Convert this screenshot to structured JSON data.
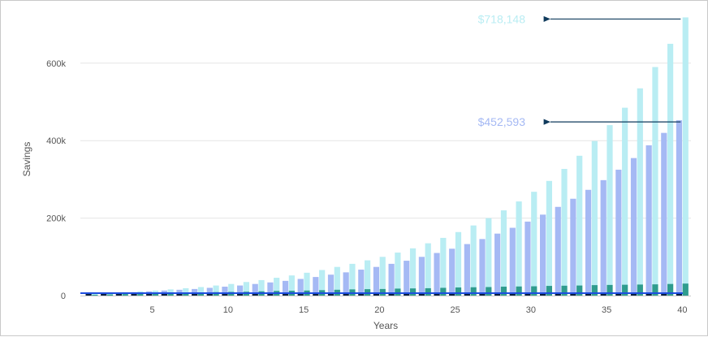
{
  "chart_data": {
    "type": "bar",
    "xlabel": "Years",
    "ylabel": "Savings",
    "x": [
      1,
      2,
      3,
      4,
      5,
      6,
      7,
      8,
      9,
      10,
      11,
      12,
      13,
      14,
      15,
      16,
      17,
      18,
      19,
      20,
      21,
      22,
      23,
      24,
      25,
      26,
      27,
      28,
      29,
      30,
      31,
      32,
      33,
      34,
      35,
      36,
      37,
      38,
      39,
      40
    ],
    "x_ticks": [
      5,
      10,
      15,
      20,
      25,
      30,
      35,
      40
    ],
    "y_ticks": [
      0,
      200000,
      400000,
      600000
    ],
    "y_tick_labels": [
      "0",
      "200k",
      "400k",
      "600k"
    ],
    "ylim": [
      0,
      740000
    ],
    "grid": true,
    "legend": "none",
    "series": [
      {
        "color": "#b9edf3",
        "values": [
          5000,
          7000,
          9000,
          11000,
          13000,
          16000,
          19000,
          22000,
          26000,
          30000,
          35000,
          40000,
          46000,
          52000,
          59000,
          66000,
          74000,
          82000,
          91000,
          100000,
          111000,
          122000,
          135000,
          149000,
          164000,
          181000,
          200000,
          220000,
          243000,
          268000,
          296000,
          327000,
          361000,
          399000,
          440000,
          485000,
          535000,
          590000,
          650000,
          718148
        ]
      },
      {
        "color": "#a5b9f4",
        "values": [
          4500,
          6000,
          7500,
          9000,
          11000,
          13000,
          15000,
          17000,
          20000,
          23000,
          26000,
          30000,
          34000,
          38000,
          43000,
          48000,
          54000,
          60000,
          67000,
          74000,
          82000,
          90000,
          100000,
          110000,
          121000,
          133000,
          146000,
          160000,
          175000,
          191000,
          209000,
          229000,
          250000,
          273000,
          298000,
          325000,
          355000,
          388000,
          420000,
          452593
        ]
      },
      {
        "color": "#2f9c8e",
        "values": [
          2000,
          3000,
          4000,
          5000,
          5500,
          6000,
          7000,
          8000,
          9000,
          9500,
          10000,
          11000,
          12000,
          12500,
          13000,
          14000,
          15000,
          16000,
          16500,
          17000,
          18000,
          18500,
          19000,
          20000,
          21000,
          21500,
          22000,
          23000,
          23500,
          24000,
          25000,
          25500,
          26000,
          27000,
          27500,
          28000,
          28500,
          29000,
          30000,
          31000
        ]
      },
      {
        "color": "#0a1f3f",
        "values": [
          1000,
          1000,
          1000,
          1000,
          1000,
          1000,
          1000,
          1000,
          1000,
          1000,
          1000,
          1000,
          1000,
          1000,
          1000,
          1000,
          1000,
          1000,
          1000,
          1000,
          1000,
          1000,
          1000,
          1000,
          1000,
          1000,
          1000,
          1000,
          1000,
          1000,
          1000,
          1000,
          1000,
          1000,
          1000,
          1000,
          1000,
          1000,
          1000,
          1000
        ]
      }
    ],
    "annotations": [
      {
        "text": "$718,148",
        "value": 718148,
        "color": "#b9edf3"
      },
      {
        "text": "$452,593",
        "value": 452593,
        "color": "#a5b9f4"
      }
    ],
    "baseline_color": "#1f4fe0",
    "arrow_color": "#0f3a5c",
    "grid_color": "#e6e6e6",
    "axis_color": "#cccccc"
  }
}
